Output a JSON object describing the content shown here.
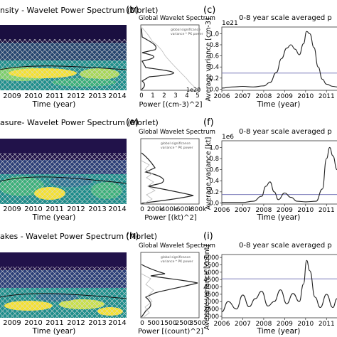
{
  "colors": {
    "wavelet_low": "#2e1a5e",
    "wavelet_mid": "#1f8f8c",
    "wavelet_high": "#f4e130",
    "line": "#222222",
    "significance": "#7a78c8",
    "reference_line": "#6a6ab0",
    "grid": "#ffffff"
  },
  "rows": [
    {
      "wavelet": {
        "title": "nsity - Wavelet Power Spectrum (Morlet)",
        "xlabel": "Time (year)",
        "xticks": [
          "2009",
          "2010",
          "2011",
          "2012",
          "2013",
          "2014"
        ]
      },
      "global": {
        "label": "(b)",
        "title": "Global Wavelet Spectrum",
        "legend": [
          "global significance",
          "variance * PK power"
        ],
        "xlabel": "Power [(cm-3)^2]",
        "xticks": [
          "0",
          "1",
          "2",
          "3",
          "4",
          "5"
        ],
        "offset": "1e20"
      },
      "scale": {
        "label": "(c)",
        "title": "0-8 year scale averaged p",
        "xlabel": "Time (year)",
        "ylabel": "Average variance [cm-3]",
        "offset": "1e21",
        "xticks": [
          "2006",
          "2007",
          "2008",
          "2009",
          "2010",
          "2011"
        ],
        "yticks": [
          "0.0",
          "0.2",
          "0.4",
          "0.6",
          "0.8",
          "1.0"
        ]
      }
    },
    {
      "wavelet": {
        "title": "asure- Wavelet Power Spectrum (Morlet)",
        "xlabel": "Time (year)",
        "xticks": [
          "2009",
          "2010",
          "2011",
          "2012",
          "2013",
          "2014"
        ]
      },
      "global": {
        "label": "(e)",
        "title": "Global Wavelet Spectrum",
        "legend": [
          "global significance",
          "variance * PK power"
        ],
        "xlabel": "Power [(kt)^2]",
        "xticks": [
          "0",
          "200k",
          "400k",
          "600k",
          "800k"
        ]
      },
      "scale": {
        "label": "(f)",
        "title": "0-8 year scale averaged p",
        "xlabel": "Time (year)",
        "ylabel": "Average variance [kt]",
        "offset": "1e6",
        "xticks": [
          "2006",
          "2007",
          "2008",
          "2009",
          "2010",
          "2011"
        ],
        "yticks": [
          "0.0",
          "0.2",
          "0.4",
          "0.6",
          "0.8",
          "1.0"
        ]
      }
    },
    {
      "wavelet": {
        "title": "akes - Wavelet Power Spectrum (Morlet)",
        "xlabel": "Time (year)",
        "xticks": [
          "2009",
          "2010",
          "2011",
          "2012",
          "2013",
          "2014"
        ]
      },
      "global": {
        "label": "(h)",
        "title": "Global Wavelet Spectrum",
        "legend": [
          "global significance",
          "variance * PK power"
        ],
        "xlabel": "Power [(count)^2]",
        "xticks": [
          "0",
          "500",
          "1500",
          "2500",
          "3500"
        ]
      },
      "scale": {
        "label": "(i)",
        "title": "0-8 year scale averaged p",
        "xlabel": "Time (year)",
        "ylabel": "Average variance [count]",
        "xticks": [
          "2006",
          "2007",
          "2008",
          "2009",
          "2010",
          "2011"
        ],
        "yticks": [
          "2000",
          "2500",
          "3000",
          "3500",
          "4000",
          "4500",
          "5000",
          "5500",
          "6000"
        ]
      }
    }
  ],
  "chart_data": [
    {
      "type": "line",
      "title": "0-8 year scale averaged p",
      "xlabel": "Time (year)",
      "ylabel": "Average variance [cm-3]",
      "xlim": [
        2006,
        2011.5
      ],
      "ylim": [
        -0.02,
        1.12
      ],
      "reference_line": 0.29,
      "x": [
        2006.0,
        2006.5,
        2007.0,
        2007.5,
        2008.0,
        2008.3,
        2008.6,
        2008.85,
        2009.1,
        2009.3,
        2009.5,
        2009.7,
        2009.9,
        2010.05,
        2010.2,
        2010.4,
        2010.6,
        2010.8,
        2011.0,
        2011.3,
        2011.5
      ],
      "y": [
        0.02,
        0.04,
        0.05,
        0.04,
        0.06,
        0.12,
        0.3,
        0.55,
        0.74,
        0.8,
        0.72,
        0.62,
        0.82,
        1.04,
        1.0,
        0.75,
        0.4,
        0.18,
        0.09,
        0.05,
        0.04
      ]
    },
    {
      "type": "line",
      "title": "0-8 year scale averaged p",
      "xlabel": "Time (year)",
      "ylabel": "Average variance [kt]",
      "xlim": [
        2006,
        2011.5
      ],
      "ylim": [
        -0.02,
        1.12
      ],
      "reference_line": 0.15,
      "x": [
        2006.0,
        2006.5,
        2007.0,
        2007.5,
        2007.9,
        2008.1,
        2008.3,
        2008.5,
        2008.7,
        2009.0,
        2009.3,
        2009.6,
        2010.0,
        2010.5,
        2010.8,
        2011.0,
        2011.15,
        2011.3,
        2011.5
      ],
      "y": [
        0.01,
        0.01,
        0.01,
        0.03,
        0.12,
        0.3,
        0.38,
        0.2,
        0.06,
        0.18,
        0.1,
        0.03,
        0.02,
        0.03,
        0.25,
        0.8,
        1.0,
        0.85,
        0.6
      ]
    },
    {
      "type": "line",
      "title": "0-8 year scale averaged p",
      "xlabel": "Time (year)",
      "ylabel": "Average variance [count]",
      "xlim": [
        2006,
        2011.5
      ],
      "ylim": [
        1900,
        6200
      ],
      "reference_line": 4550,
      "x": [
        2006.0,
        2006.3,
        2006.7,
        2007.0,
        2007.3,
        2007.6,
        2007.9,
        2008.2,
        2008.5,
        2008.8,
        2009.1,
        2009.4,
        2009.7,
        2009.9,
        2010.05,
        2010.2,
        2010.45,
        2010.7,
        2011.0,
        2011.3,
        2011.5
      ],
      "y": [
        2300,
        3000,
        2500,
        3450,
        2650,
        3200,
        3700,
        2700,
        3000,
        3800,
        2850,
        3550,
        3000,
        4200,
        5800,
        5100,
        3300,
        2600,
        3500,
        2600,
        3200
      ]
    }
  ]
}
